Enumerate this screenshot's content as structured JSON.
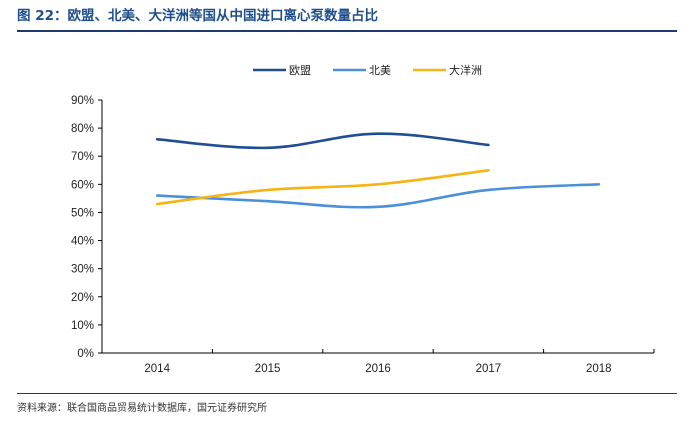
{
  "figure": {
    "title": "图 22：欧盟、北美、大洋洲等国从中国进口离心泵数量占比",
    "source": "资料来源：联合国商品贸易统计数据库，国元证券研究所"
  },
  "chart_data": {
    "type": "line",
    "x": [
      "2014",
      "2015",
      "2016",
      "2017",
      "2018"
    ],
    "ylim": [
      0,
      90
    ],
    "yticks": [
      "0%",
      "10%",
      "20%",
      "30%",
      "40%",
      "50%",
      "60%",
      "70%",
      "80%",
      "90%"
    ],
    "grid": false,
    "legend_position": "top-center",
    "series": [
      {
        "name": "欧盟",
        "color": "#1f4e96",
        "values": [
          76,
          73,
          78,
          74,
          null
        ]
      },
      {
        "name": "北美",
        "color": "#4a90d9",
        "values": [
          56,
          54,
          52,
          58,
          60
        ]
      },
      {
        "name": "大洋洲",
        "color": "#f5b315",
        "values": [
          53,
          58,
          60,
          65,
          null
        ]
      }
    ]
  }
}
